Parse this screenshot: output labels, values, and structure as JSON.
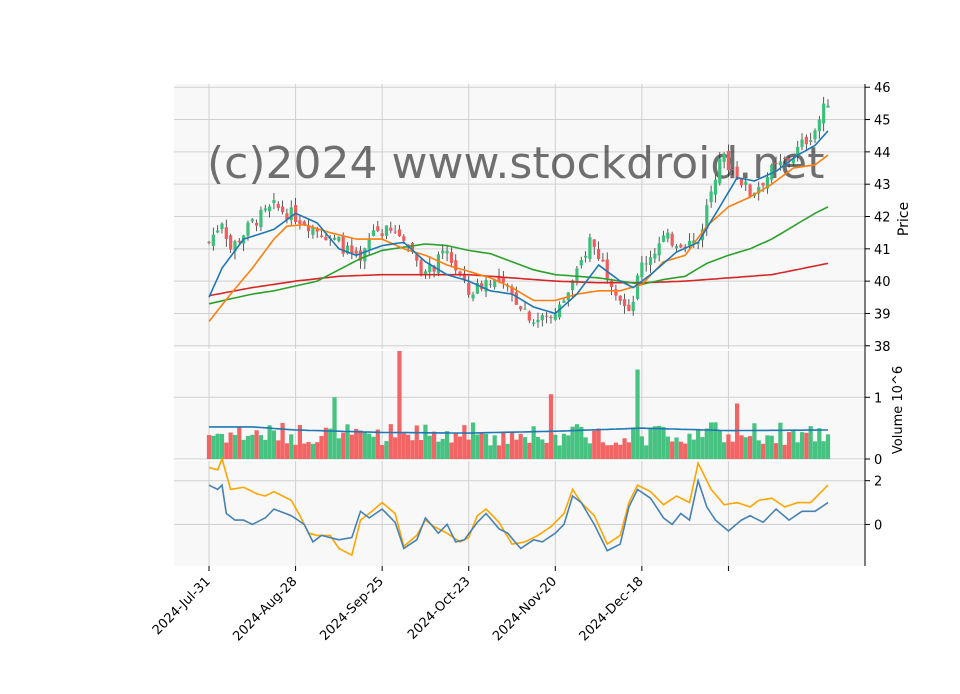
{
  "chart_data": {
    "type": "candlestick",
    "watermark": "(c)2024 www.stockdroid.net",
    "colors": {
      "up": "#3cbf7a",
      "down": "#f25c5c",
      "ma_short": "#1f77b4",
      "ma_mid": "#ff7f0e",
      "ma_long": "#2ca02c",
      "ma_longest": "#d62728",
      "volume_ma": "#1f77b4",
      "indicator_a": "#4682b4",
      "indicator_b": "#ffa500",
      "panel_bg": "#f8f8f8",
      "grid": "#d0d0d0"
    },
    "x_ticks": [
      "2024-Jul-31",
      "2024-Aug-28",
      "2024-Sep-25",
      "2024-Oct-23",
      "2024-Nov-20",
      "2024-Dec-18"
    ],
    "price_panel": {
      "ylabel": "Price",
      "ylim": [
        37.9,
        46.1
      ],
      "yticks": [
        "38",
        "39",
        "40",
        "41",
        "42",
        "43",
        "44",
        "45",
        "46"
      ],
      "keypoints": [
        [
          0,
          41.2
        ],
        [
          3,
          41.9
        ],
        [
          5,
          41.0
        ],
        [
          10,
          41.8
        ],
        [
          15,
          42.3
        ],
        [
          20,
          42.0
        ],
        [
          25,
          41.6
        ],
        [
          30,
          41.2
        ],
        [
          35,
          40.5
        ],
        [
          38,
          41.6
        ],
        [
          45,
          41.4
        ],
        [
          50,
          40.2
        ],
        [
          55,
          40.9
        ],
        [
          60,
          39.6
        ],
        [
          65,
          40.1
        ],
        [
          68,
          39.8
        ],
        [
          72,
          39.3
        ],
        [
          75,
          38.8
        ],
        [
          80,
          38.9
        ],
        [
          85,
          40.2
        ],
        [
          88,
          41.3
        ],
        [
          92,
          40.3
        ],
        [
          95,
          39.5
        ],
        [
          97,
          38.9
        ],
        [
          100,
          40.5
        ],
        [
          105,
          41.3
        ],
        [
          110,
          41.2
        ],
        [
          113,
          41.2
        ],
        [
          118,
          43.9
        ],
        [
          122,
          43.3
        ],
        [
          125,
          42.7
        ],
        [
          130,
          43.4
        ],
        [
          135,
          43.9
        ],
        [
          140,
          44.7
        ],
        [
          143,
          45.6
        ]
      ],
      "ma_short_series": [
        [
          0,
          39.5
        ],
        [
          3,
          40.4
        ],
        [
          8,
          41.3
        ],
        [
          15,
          41.6
        ],
        [
          20,
          42.1
        ],
        [
          25,
          41.8
        ],
        [
          30,
          41.0
        ],
        [
          34,
          40.8
        ],
        [
          40,
          41.1
        ],
        [
          45,
          41.2
        ],
        [
          50,
          40.6
        ],
        [
          55,
          40.2
        ],
        [
          60,
          40.0
        ],
        [
          65,
          39.7
        ],
        [
          70,
          39.6
        ],
        [
          75,
          39.2
        ],
        [
          80,
          39.0
        ],
        [
          85,
          39.6
        ],
        [
          90,
          40.5
        ],
        [
          95,
          40.0
        ],
        [
          98,
          39.8
        ],
        [
          102,
          40.2
        ],
        [
          108,
          40.9
        ],
        [
          113,
          41.2
        ],
        [
          118,
          42.3
        ],
        [
          122,
          43.2
        ],
        [
          126,
          43.1
        ],
        [
          131,
          43.4
        ],
        [
          136,
          43.9
        ],
        [
          140,
          44.2
        ],
        [
          143,
          44.65
        ]
      ],
      "ma_mid_series": [
        [
          0,
          38.75
        ],
        [
          5,
          39.6
        ],
        [
          10,
          40.4
        ],
        [
          15,
          41.3
        ],
        [
          18,
          41.7
        ],
        [
          22,
          41.75
        ],
        [
          28,
          41.5
        ],
        [
          34,
          41.3
        ],
        [
          40,
          41.3
        ],
        [
          45,
          41.0
        ],
        [
          50,
          40.8
        ],
        [
          55,
          40.5
        ],
        [
          60,
          40.3
        ],
        [
          65,
          40.1
        ],
        [
          70,
          39.8
        ],
        [
          75,
          39.4
        ],
        [
          80,
          39.4
        ],
        [
          85,
          39.6
        ],
        [
          90,
          39.7
        ],
        [
          95,
          39.7
        ],
        [
          100,
          39.9
        ],
        [
          105,
          40.6
        ],
        [
          110,
          40.8
        ],
        [
          115,
          41.7
        ],
        [
          120,
          42.3
        ],
        [
          125,
          42.6
        ],
        [
          130,
          43.0
        ],
        [
          135,
          43.5
        ],
        [
          140,
          43.6
        ],
        [
          143,
          43.9
        ]
      ],
      "ma_long_series": [
        [
          0,
          39.3
        ],
        [
          5,
          39.45
        ],
        [
          10,
          39.6
        ],
        [
          15,
          39.7
        ],
        [
          20,
          39.85
        ],
        [
          25,
          40.0
        ],
        [
          30,
          40.35
        ],
        [
          35,
          40.7
        ],
        [
          40,
          40.95
        ],
        [
          45,
          41.05
        ],
        [
          50,
          41.15
        ],
        [
          55,
          41.1
        ],
        [
          60,
          40.95
        ],
        [
          65,
          40.85
        ],
        [
          70,
          40.6
        ],
        [
          75,
          40.35
        ],
        [
          80,
          40.2
        ],
        [
          85,
          40.15
        ],
        [
          90,
          40.1
        ],
        [
          95,
          40.0
        ],
        [
          100,
          39.9
        ],
        [
          105,
          40.05
        ],
        [
          110,
          40.15
        ],
        [
          115,
          40.55
        ],
        [
          120,
          40.8
        ],
        [
          125,
          41.0
        ],
        [
          130,
          41.3
        ],
        [
          135,
          41.7
        ],
        [
          140,
          42.1
        ],
        [
          143,
          42.3
        ]
      ],
      "ma_longest_series": [
        [
          0,
          39.55
        ],
        [
          10,
          39.8
        ],
        [
          20,
          40.0
        ],
        [
          30,
          40.15
        ],
        [
          40,
          40.2
        ],
        [
          50,
          40.2
        ],
        [
          60,
          40.2
        ],
        [
          70,
          40.1
        ],
        [
          80,
          40.0
        ],
        [
          90,
          39.95
        ],
        [
          100,
          39.95
        ],
        [
          110,
          40.0
        ],
        [
          120,
          40.1
        ],
        [
          130,
          40.2
        ],
        [
          143,
          40.55
        ]
      ]
    },
    "volume_panel": {
      "ylabel": "Volume  10^6",
      "ylim": [
        0,
        1.75
      ],
      "yticks": [
        "0",
        "1"
      ],
      "ma_level": 0.47,
      "spikes": [
        [
          44,
          1.75
        ],
        [
          29,
          1.0
        ],
        [
          99,
          1.45
        ],
        [
          79,
          1.05
        ],
        [
          122,
          0.9
        ]
      ]
    },
    "indicator_panel": {
      "ylim": [
        -1.9,
        2.9
      ],
      "yticks": [
        "0",
        "2"
      ],
      "series_a": [
        [
          0,
          1.8
        ],
        [
          2,
          1.6
        ],
        [
          3,
          1.8
        ],
        [
          4,
          0.5
        ],
        [
          6,
          0.2
        ],
        [
          8,
          0.2
        ],
        [
          10,
          0.0
        ],
        [
          13,
          0.3
        ],
        [
          15,
          0.7
        ],
        [
          19,
          0.4
        ],
        [
          22,
          0.0
        ],
        [
          24,
          -0.8
        ],
        [
          26,
          -0.5
        ],
        [
          30,
          -0.7
        ],
        [
          33,
          -0.6
        ],
        [
          35,
          0.6
        ],
        [
          37,
          0.3
        ],
        [
          40,
          0.7
        ],
        [
          43,
          0.1
        ],
        [
          45,
          -1.1
        ],
        [
          48,
          -0.7
        ],
        [
          50,
          0.3
        ],
        [
          53,
          -0.4
        ],
        [
          55,
          0.0
        ],
        [
          57,
          -0.8
        ],
        [
          59,
          -0.7
        ],
        [
          62,
          0.1
        ],
        [
          64,
          0.5
        ],
        [
          67,
          -0.2
        ],
        [
          69,
          -0.4
        ],
        [
          72,
          -1.1
        ],
        [
          75,
          -0.7
        ],
        [
          77,
          -0.8
        ],
        [
          80,
          -0.4
        ],
        [
          82,
          0.0
        ],
        [
          84,
          1.3
        ],
        [
          86,
          1.0
        ],
        [
          89,
          0.0
        ],
        [
          92,
          -1.2
        ],
        [
          95,
          -0.9
        ],
        [
          97,
          0.8
        ],
        [
          99,
          1.6
        ],
        [
          102,
          1.2
        ],
        [
          105,
          0.3
        ],
        [
          107,
          0.0
        ],
        [
          109,
          0.5
        ],
        [
          111,
          0.2
        ],
        [
          113,
          2.0
        ],
        [
          115,
          0.8
        ],
        [
          117,
          0.2
        ],
        [
          120,
          -0.3
        ],
        [
          123,
          0.2
        ],
        [
          125,
          0.4
        ],
        [
          128,
          0.1
        ],
        [
          131,
          0.7
        ],
        [
          134,
          0.2
        ],
        [
          137,
          0.6
        ],
        [
          140,
          0.6
        ],
        [
          143,
          1.0
        ]
      ],
      "series_b": [
        [
          0,
          2.6
        ],
        [
          2,
          2.5
        ],
        [
          3,
          3.0
        ],
        [
          5,
          1.6
        ],
        [
          8,
          1.7
        ],
        [
          11,
          1.4
        ],
        [
          13,
          1.3
        ],
        [
          15,
          1.5
        ],
        [
          19,
          1.1
        ],
        [
          21,
          0.4
        ],
        [
          23,
          -0.4
        ],
        [
          25,
          -0.5
        ],
        [
          28,
          -0.5
        ],
        [
          30,
          -1.1
        ],
        [
          33,
          -1.4
        ],
        [
          35,
          0.2
        ],
        [
          37,
          0.5
        ],
        [
          40,
          1.0
        ],
        [
          43,
          0.5
        ],
        [
          45,
          -1.0
        ],
        [
          48,
          -0.5
        ],
        [
          50,
          0.2
        ],
        [
          52,
          -0.1
        ],
        [
          55,
          -0.4
        ],
        [
          58,
          -0.8
        ],
        [
          60,
          -0.6
        ],
        [
          62,
          0.4
        ],
        [
          64,
          0.7
        ],
        [
          67,
          0.1
        ],
        [
          70,
          -0.9
        ],
        [
          73,
          -0.8
        ],
        [
          76,
          -0.5
        ],
        [
          79,
          -0.1
        ],
        [
          82,
          0.5
        ],
        [
          84,
          1.6
        ],
        [
          86,
          1.0
        ],
        [
          89,
          0.4
        ],
        [
          92,
          -0.9
        ],
        [
          95,
          -0.5
        ],
        [
          97,
          1.0
        ],
        [
          99,
          1.8
        ],
        [
          102,
          1.5
        ],
        [
          105,
          0.9
        ],
        [
          108,
          1.3
        ],
        [
          111,
          1.0
        ],
        [
          113,
          2.8
        ],
        [
          116,
          1.6
        ],
        [
          119,
          0.9
        ],
        [
          122,
          1.0
        ],
        [
          125,
          0.8
        ],
        [
          127,
          1.1
        ],
        [
          130,
          1.2
        ],
        [
          133,
          0.8
        ],
        [
          136,
          1.0
        ],
        [
          139,
          1.0
        ],
        [
          143,
          1.8
        ]
      ]
    }
  }
}
